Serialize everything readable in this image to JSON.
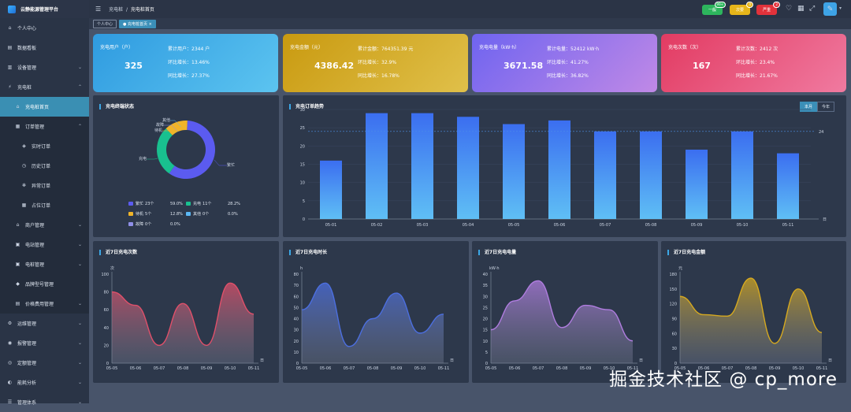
{
  "app": {
    "title": "云静能源管理平台"
  },
  "sidebar": {
    "items": [
      {
        "label": "个人中心",
        "icon": "home-icon"
      },
      {
        "label": "数据看板",
        "icon": "dashboard-icon"
      },
      {
        "label": "设备管理",
        "icon": "chart-icon"
      },
      {
        "label": "充电桩",
        "icon": "charger-icon"
      },
      {
        "label": "充电桩首页",
        "icon": "home-icon"
      },
      {
        "label": "订单管理",
        "icon": "doc-icon"
      },
      {
        "label": "实时订单",
        "icon": "cube-icon"
      },
      {
        "label": "历史订单",
        "icon": "clock-icon"
      },
      {
        "label": "异常订单",
        "icon": "gear-icon"
      },
      {
        "label": "占位订单",
        "icon": "doc-icon"
      },
      {
        "label": "商户管理",
        "icon": "shop-icon"
      },
      {
        "label": "电站管理",
        "icon": "station-icon"
      },
      {
        "label": "电桩管理",
        "icon": "pile-icon"
      },
      {
        "label": "品牌型号管理",
        "icon": "tag-icon"
      },
      {
        "label": "价格费用管理",
        "icon": "price-icon"
      },
      {
        "label": "运维管理",
        "icon": "wrench-icon"
      },
      {
        "label": "报警管理",
        "icon": "alarm-icon"
      },
      {
        "label": "定额管理",
        "icon": "quota-icon"
      },
      {
        "label": "能耗分析",
        "icon": "analysis-icon"
      },
      {
        "label": "管理体系",
        "icon": "system-icon"
      }
    ]
  },
  "header": {
    "breadcrumb": [
      "充电桩",
      "充电桩首页"
    ],
    "buttons": [
      {
        "label": "一般",
        "badge": "99+",
        "color": "#2db55d"
      },
      {
        "label": "次要",
        "badge": "4",
        "color": "#e6b51a"
      },
      {
        "label": "严重",
        "badge": "2",
        "color": "#e2323b"
      }
    ]
  },
  "tabs": [
    {
      "label": "个人中心"
    },
    {
      "label": "充电桩首页",
      "close": "×"
    }
  ],
  "cards": [
    {
      "title": "充电用户（户）",
      "value": "325",
      "r1": "累计用户：2344 户",
      "r2": "环比增长：13.46%",
      "r3": "同比增长：27.37%",
      "color": "#38a9e6"
    },
    {
      "title": "充电金额（元）",
      "value": "4386.42",
      "r1": "累计金额：764351.39 元",
      "r2": "环比增长：32.9%",
      "r3": "同比增长：16.78%",
      "color": "#d9a91c"
    },
    {
      "title": "充电电量（kW·h）",
      "value": "3671.58",
      "r1": "累计电量：52412 kW·h",
      "r2": "环比增长：41.27%",
      "r3": "同比增长：36.82%",
      "color": "#8a6ee6"
    },
    {
      "title": "充电次数（次）",
      "value": "167",
      "r1": "累计次数：2412 次",
      "r2": "环比增长：23.4%",
      "r3": "同比增长：21.67%",
      "color": "#e54a6a"
    }
  ],
  "status_panel": {
    "title": "充电终端状态",
    "legend": [
      {
        "label": "繁忙",
        "count": "23个",
        "pct": "59.0%",
        "color": "#5b5bf0"
      },
      {
        "label": "充电",
        "count": "11个",
        "pct": "28.2%",
        "color": "#19c08f"
      },
      {
        "label": "待机",
        "count": "5个",
        "pct": "12.8%",
        "color": "#f0b429"
      },
      {
        "label": "其他",
        "count": "0个",
        "pct": "0.0%",
        "color": "#5bb8f5"
      },
      {
        "label": "故障",
        "count": "0个",
        "pct": "0.0%",
        "color": "#8f8fe8"
      }
    ],
    "slice_labels": [
      "故障",
      "待机",
      "其他",
      "充电",
      "繁忙"
    ]
  },
  "trend_panel": {
    "title": "充电订单趋势",
    "seg": [
      "本月",
      "今年"
    ],
    "unit": "日"
  },
  "small_panels": [
    {
      "title": "近7日充电次数",
      "unit": "次",
      "xunit": "日"
    },
    {
      "title": "近7日充电时长",
      "unit": "h",
      "xunit": "日"
    },
    {
      "title": "近7日充电电量",
      "unit": "kW·h",
      "xunit": "日"
    },
    {
      "title": "近7日充电金额",
      "unit": "元",
      "xunit": "日"
    }
  ],
  "chart_data": [
    {
      "type": "pie",
      "title": "充电终端状态",
      "categories": [
        "繁忙",
        "充电",
        "待机",
        "其他",
        "故障"
      ],
      "values": [
        23,
        11,
        5,
        0,
        0
      ]
    },
    {
      "type": "bar",
      "title": "充电订单趋势",
      "categories": [
        "05-01",
        "05-02",
        "05-03",
        "05-04",
        "05-05",
        "05-06",
        "05-07",
        "05-08",
        "05-09",
        "05-10",
        "05-11"
      ],
      "values": [
        16,
        29,
        29,
        28,
        26,
        27,
        24,
        24,
        19,
        24,
        18
      ],
      "ylim": [
        0,
        30
      ],
      "yticks": [
        0,
        5,
        10,
        15,
        20,
        25,
        30
      ],
      "avg_line": 24,
      "avg_label": "24"
    },
    {
      "type": "area",
      "title": "近7日充电次数",
      "categories": [
        "05-05",
        "05-06",
        "05-07",
        "05-08",
        "05-09",
        "05-10",
        "05-11"
      ],
      "values": [
        80,
        65,
        20,
        67,
        20,
        90,
        55
      ],
      "ylim": [
        0,
        100
      ],
      "yticks": [
        0,
        20,
        40,
        60,
        80,
        100
      ],
      "color": "#e0506a"
    },
    {
      "type": "area",
      "title": "近7日充电时长",
      "categories": [
        "05-05",
        "05-06",
        "05-07",
        "05-08",
        "05-09",
        "05-10",
        "05-11"
      ],
      "values": [
        48,
        72,
        15,
        40,
        63,
        27,
        44
      ],
      "ylim": [
        0,
        80
      ],
      "yticks": [
        0,
        10,
        20,
        30,
        40,
        50,
        60,
        70,
        80
      ],
      "color": "#4c6fe0"
    },
    {
      "type": "area",
      "title": "近7日充电电量",
      "categories": [
        "05-05",
        "05-06",
        "05-07",
        "05-08",
        "05-09",
        "05-10",
        "05-11"
      ],
      "values": [
        15,
        28,
        37,
        16,
        26,
        24,
        10
      ],
      "ylim": [
        0,
        40
      ],
      "yticks": [
        0,
        5,
        10,
        15,
        20,
        25,
        30,
        35,
        40
      ],
      "color": "#b07de0"
    },
    {
      "type": "area",
      "title": "近7日充电金额",
      "categories": [
        "05-05",
        "05-06",
        "05-07",
        "05-08",
        "05-09",
        "05-10",
        "05-11"
      ],
      "values": [
        135,
        98,
        95,
        172,
        40,
        150,
        62
      ],
      "ylim": [
        0,
        180
      ],
      "yticks": [
        0,
        30,
        60,
        90,
        120,
        150,
        180
      ],
      "color": "#d6a920"
    }
  ],
  "watermark": "掘金技术社区 @ cp_more"
}
